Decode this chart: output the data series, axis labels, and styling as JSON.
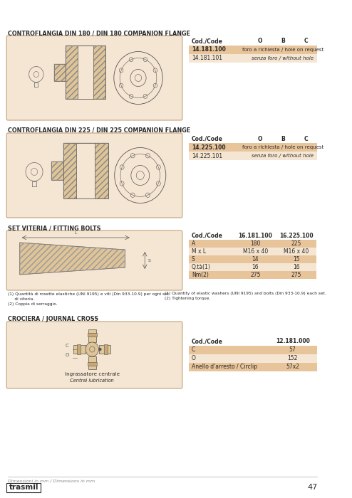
{
  "bg_color": "#ffffff",
  "diagram_bg": "#f5e6d3",
  "diagram_border": "#b8956a",
  "header_row_bg": "#e8c49a",
  "data_row_bg": "#f5e6d3",
  "text_dark": "#2a2a2a",
  "section1_title": "CONTROFLANGIA DIN 180 / DIN 180 COMPANION FLANGE",
  "section1_table_headers": [
    "Cod./Code",
    "O",
    "B",
    "C"
  ],
  "section1_rows": [
    {
      "code": "14.181.100",
      "note": "foro a richiesta / hole on request",
      "highlight": true
    },
    {
      "code": "14.181.101",
      "note": "senza foro / without hole",
      "highlight": false
    }
  ],
  "section2_title": "CONTROFLANGIA DIN 225 / DIN 225 COMPANION FLANGE",
  "section2_table_headers": [
    "Cod./Code",
    "O",
    "B",
    "C"
  ],
  "section2_rows": [
    {
      "code": "14.225.100",
      "note": "foro a richiesta / hole on request",
      "highlight": true
    },
    {
      "code": "14.225.101",
      "note": "senza foro / without hole",
      "highlight": false
    }
  ],
  "section3_title": "SET VITERIA / FITTING BOLTS",
  "section3_table_headers": [
    "Cod./Code",
    "16.181.100",
    "16.225.100"
  ],
  "section3_rows": [
    {
      "label": "A",
      "v1": "180",
      "v2": "225",
      "highlight": true
    },
    {
      "label": "M x L",
      "v1": "M16 x 40",
      "v2": "M16 x 40",
      "highlight": false
    },
    {
      "label": "S",
      "v1": "14",
      "v2": "15",
      "highlight": true
    },
    {
      "label": "Q.tà(1)",
      "v1": "16",
      "v2": "16",
      "highlight": false
    },
    {
      "label": "Nm(2)",
      "v1": "275",
      "v2": "275",
      "highlight": true
    }
  ],
  "section3_note_it": "(1) Quantità di rosette elastiche (UNI 9195) e viti (Din 933-10.9) per ogni set\n     di viteria.\n(2) Coppia di serraggio.",
  "section3_note_en": "(1) Quantity of elastic washers (UNI 9195) and bolts (Din 933-10.9) each set.\n(2) Tightening torque.",
  "section4_title": "CROCIERA / JOURNAL CROSS",
  "section4_diagram_text1": "Ingrassatore centrale",
  "section4_diagram_text2": "Central lubrication",
  "section4_table_headers": [
    "Cod./Code",
    "12.181.000"
  ],
  "section4_rows": [
    {
      "label": "C",
      "v1": "57",
      "highlight": true
    },
    {
      "label": "O",
      "v1": "152",
      "highlight": false
    },
    {
      "label": "Anello d'arresto / Circlip",
      "v1": "57x2",
      "highlight": true
    }
  ],
  "footer_text": "Dimensioni in mm / Dimensions in mm",
  "footer_logo": "trasmil",
  "footer_page": "47"
}
